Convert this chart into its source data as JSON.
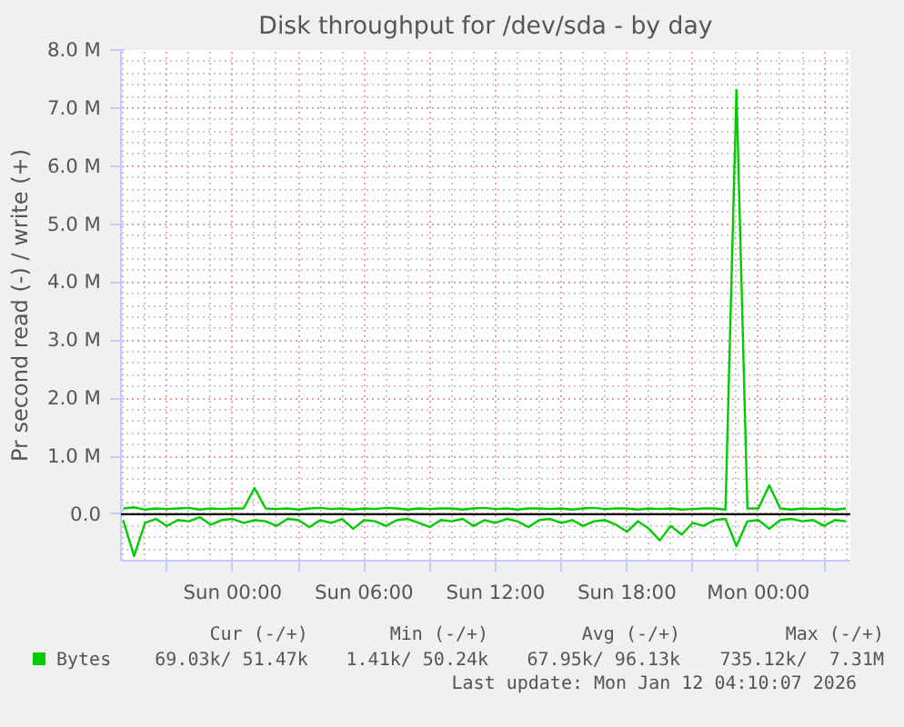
{
  "chart_data": {
    "type": "line",
    "title": "Disk throughput for /dev/sda - by day",
    "ylabel": "Pr second read (-) / write (+)",
    "x": [
      "2026-01-10T19:00",
      "2026-01-10T19:30",
      "2026-01-10T20:00",
      "2026-01-10T20:30",
      "2026-01-10T21:00",
      "2026-01-10T21:30",
      "2026-01-10T22:00",
      "2026-01-10T22:30",
      "2026-01-10T23:00",
      "2026-01-10T23:30",
      "2026-01-11T00:00",
      "2026-01-11T00:30",
      "2026-01-11T01:00",
      "2026-01-11T01:30",
      "2026-01-11T02:00",
      "2026-01-11T02:30",
      "2026-01-11T03:00",
      "2026-01-11T03:30",
      "2026-01-11T04:00",
      "2026-01-11T04:30",
      "2026-01-11T05:00",
      "2026-01-11T05:30",
      "2026-01-11T06:00",
      "2026-01-11T06:30",
      "2026-01-11T07:00",
      "2026-01-11T07:30",
      "2026-01-11T08:00",
      "2026-01-11T08:30",
      "2026-01-11T09:00",
      "2026-01-11T09:30",
      "2026-01-11T10:00",
      "2026-01-11T10:30",
      "2026-01-11T11:00",
      "2026-01-11T11:30",
      "2026-01-11T12:00",
      "2026-01-11T12:30",
      "2026-01-11T13:00",
      "2026-01-11T13:30",
      "2026-01-11T14:00",
      "2026-01-11T14:30",
      "2026-01-11T15:00",
      "2026-01-11T15:30",
      "2026-01-11T16:00",
      "2026-01-11T16:30",
      "2026-01-11T17:00",
      "2026-01-11T17:30",
      "2026-01-11T18:00",
      "2026-01-11T18:30",
      "2026-01-11T19:00",
      "2026-01-11T19:30",
      "2026-01-11T20:00",
      "2026-01-11T20:30",
      "2026-01-11T21:00",
      "2026-01-11T21:30",
      "2026-01-11T22:00",
      "2026-01-11T22:30",
      "2026-01-11T23:00",
      "2026-01-11T23:30",
      "2026-01-12T00:00",
      "2026-01-12T00:30",
      "2026-01-12T01:00",
      "2026-01-12T01:30",
      "2026-01-12T02:00",
      "2026-01-12T02:30",
      "2026-01-12T03:00",
      "2026-01-12T03:30",
      "2026-01-12T04:00"
    ],
    "series": [
      {
        "name": "Bytes",
        "color": "#00cc00",
        "values": [
          0.1,
          0.12,
          0.08,
          0.1,
          0.09,
          0.1,
          0.11,
          0.08,
          0.1,
          0.09,
          0.1,
          0.1,
          0.45,
          0.1,
          0.09,
          0.1,
          0.08,
          0.1,
          0.11,
          0.09,
          0.1,
          0.08,
          0.1,
          0.09,
          0.11,
          0.1,
          0.08,
          0.1,
          0.09,
          0.1,
          0.1,
          0.08,
          0.1,
          0.11,
          0.09,
          0.1,
          0.08,
          0.1,
          0.1,
          0.09,
          0.1,
          0.08,
          0.1,
          0.11,
          0.09,
          0.1,
          0.1,
          0.08,
          0.1,
          0.09,
          0.1,
          0.08,
          0.09,
          0.1,
          0.1,
          0.08,
          7.31,
          0.1,
          0.1,
          0.5,
          0.1,
          0.08,
          0.1,
          0.09,
          0.1,
          0.08,
          0.1
        ]
      },
      {
        "color": "#00cc00",
        "values": [
          -0.1,
          -0.72,
          -0.15,
          -0.08,
          -0.2,
          -0.1,
          -0.12,
          -0.05,
          -0.18,
          -0.1,
          -0.08,
          -0.15,
          -0.1,
          -0.12,
          -0.2,
          -0.08,
          -0.1,
          -0.22,
          -0.1,
          -0.15,
          -0.08,
          -0.25,
          -0.1,
          -0.12,
          -0.2,
          -0.1,
          -0.08,
          -0.15,
          -0.22,
          -0.1,
          -0.12,
          -0.08,
          -0.2,
          -0.1,
          -0.15,
          -0.08,
          -0.12,
          -0.22,
          -0.1,
          -0.08,
          -0.15,
          -0.1,
          -0.2,
          -0.12,
          -0.1,
          -0.18,
          -0.3,
          -0.12,
          -0.25,
          -0.45,
          -0.2,
          -0.35,
          -0.15,
          -0.2,
          -0.1,
          -0.08,
          -0.55,
          -0.12,
          -0.1,
          -0.25,
          -0.1,
          -0.08,
          -0.12,
          -0.1,
          -0.2,
          -0.1,
          -0.12
        ]
      }
    ],
    "xlim": [
      "2026-01-10T18:54",
      "2026-01-12T04:12"
    ],
    "ylim": [
      -0.8,
      8.0
    ],
    "xticks": [
      {
        "value": "2026-01-10T21:00",
        "label": null
      },
      {
        "value": "2026-01-11T00:00",
        "label": "Sun 00:00"
      },
      {
        "value": "2026-01-11T03:00",
        "label": null
      },
      {
        "value": "2026-01-11T06:00",
        "label": "Sun 06:00"
      },
      {
        "value": "2026-01-11T09:00",
        "label": null
      },
      {
        "value": "2026-01-11T12:00",
        "label": "Sun 12:00"
      },
      {
        "value": "2026-01-11T15:00",
        "label": null
      },
      {
        "value": "2026-01-11T18:00",
        "label": "Sun 18:00"
      },
      {
        "value": "2026-01-11T21:00",
        "label": null
      },
      {
        "value": "2026-01-12T00:00",
        "label": "Mon 00:00"
      },
      {
        "value": "2026-01-12T03:00",
        "label": null
      }
    ],
    "yticks": [
      {
        "value": 0,
        "label": "0.0"
      },
      {
        "value": 1,
        "label": "1.0 M"
      },
      {
        "value": 2,
        "label": "2.0 M"
      },
      {
        "value": 3,
        "label": "3.0 M"
      },
      {
        "value": 4,
        "label": "4.0 M"
      },
      {
        "value": 5,
        "label": "5.0 M"
      },
      {
        "value": 6,
        "label": "6.0 M"
      },
      {
        "value": 7,
        "label": "7.0 M"
      },
      {
        "value": 8,
        "label": "8.0 M"
      }
    ],
    "ref_lines": [
      {
        "axis": "y",
        "value": 0,
        "color": "#000000"
      }
    ],
    "grid": true,
    "legend": "bottom",
    "marker": "none",
    "line_style": "solid",
    "annotations": [
      "Cur (-/+)",
      "Min (-/+)",
      "Avg (-/+)",
      "Max (-/+)",
      "69.03k/ 51.47k",
      "1.41k/ 50.24k",
      "67.95k/ 96.13k",
      "735.12k/  7.31M",
      "Last update: Mon Jan 12 04:10:07 2026"
    ]
  }
}
